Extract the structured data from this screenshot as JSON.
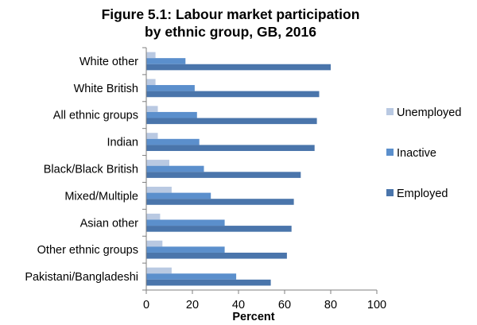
{
  "chart_data": {
    "type": "bar",
    "orientation": "horizontal",
    "title_line1": "Figure 5.1: Labour market participation",
    "title_line2": "by ethnic group, GB, 2016",
    "xlabel": "Percent",
    "xlim": [
      0,
      100
    ],
    "x_ticks": [
      "0",
      "20",
      "40",
      "60",
      "80",
      "100"
    ],
    "grid": false,
    "legend_position": "right",
    "categories": [
      "White other",
      "White British",
      "All ethnic groups",
      "Indian",
      "Black/Black British",
      "Mixed/Multiple",
      "Asian other",
      "Other ethnic groups",
      "Pakistani/Bangladeshi"
    ],
    "series": [
      {
        "name": "Unemployed",
        "color": "#b9c9e2",
        "values": [
          4,
          4,
          5,
          5,
          10,
          11,
          6,
          7,
          11
        ]
      },
      {
        "name": "Inactive",
        "color": "#5b8fcc",
        "values": [
          17,
          21,
          22,
          23,
          25,
          28,
          34,
          34,
          39
        ]
      },
      {
        "name": "Employed",
        "color": "#4a75ab",
        "values": [
          80,
          75,
          74,
          73,
          67,
          64,
          63,
          61,
          54
        ]
      }
    ]
  }
}
